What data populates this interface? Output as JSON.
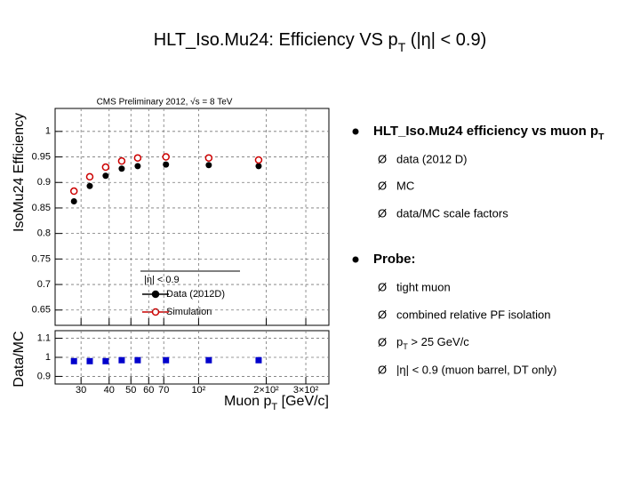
{
  "slide": {
    "title": [
      "HLT_Iso.Mu24: Efficiency VS p",
      "T",
      " (|η| < 0.9)"
    ],
    "bullets": [
      {
        "text": [
          "HLT_Iso.Mu24 efficiency vs muon p",
          "T"
        ],
        "items": [
          [
            "data  (2012 D)"
          ],
          [
            "MC"
          ],
          [
            "data/MC scale factors"
          ]
        ]
      },
      {
        "text": [
          "Probe:"
        ],
        "items": [
          [
            "tight muon"
          ],
          [
            "combined relative PF isolation"
          ],
          [
            "p",
            "T",
            " > 25 GeV/c"
          ],
          [
            "|η| < 0.9  (muon barrel, DT only)"
          ]
        ]
      }
    ]
  },
  "chart_data": [
    {
      "type": "scatter",
      "annotation": "CMS Preliminary 2012,  √s = 8 TeV",
      "y_label": "IsoMu24 Efficiency",
      "legend_title": "|η| < 0.9",
      "log_x": true,
      "xlim": [
        23,
        380
      ],
      "ylim": [
        0.62,
        1.045
      ],
      "grid": true,
      "yticks": [
        0.65,
        0.7,
        0.75,
        0.8,
        0.85,
        0.9,
        0.95,
        1
      ],
      "x": [
        27.9,
        32.8,
        38.6,
        45.5,
        53.6,
        71.6,
        111,
        185
      ],
      "series": [
        {
          "name": "Data (2012D)",
          "color": "#000000",
          "marker": "circle",
          "values": [
            0.863,
            0.893,
            0.913,
            0.927,
            0.932,
            0.935,
            0.934,
            0.932
          ]
        },
        {
          "name": "Simulation",
          "color": "#cc0000",
          "marker": "open-circle",
          "values": [
            0.883,
            0.911,
            0.93,
            0.942,
            0.948,
            0.95,
            0.948,
            0.944
          ]
        }
      ]
    },
    {
      "type": "scatter",
      "y_label": "Data/MC",
      "x_label": [
        "Muon p",
        "T",
        " [GeV/c]"
      ],
      "log_x": true,
      "xlim": [
        23,
        380
      ],
      "ylim": [
        0.86,
        1.14
      ],
      "grid": true,
      "yticks": [
        0.9,
        1,
        1.1
      ],
      "xticks": [
        30,
        40,
        50,
        60,
        70,
        {
          "value": 100,
          "label": "10²"
        },
        {
          "value": 200,
          "label": "2×10²"
        },
        {
          "value": 300,
          "label": "3×10²"
        }
      ],
      "x": [
        27.9,
        32.8,
        38.6,
        45.5,
        53.6,
        71.6,
        111,
        185
      ],
      "series": [
        {
          "color": "#0000cc",
          "marker": "square",
          "values": [
            0.98,
            0.98,
            0.98,
            0.985,
            0.985,
            0.985,
            0.985,
            0.985
          ]
        }
      ]
    }
  ]
}
